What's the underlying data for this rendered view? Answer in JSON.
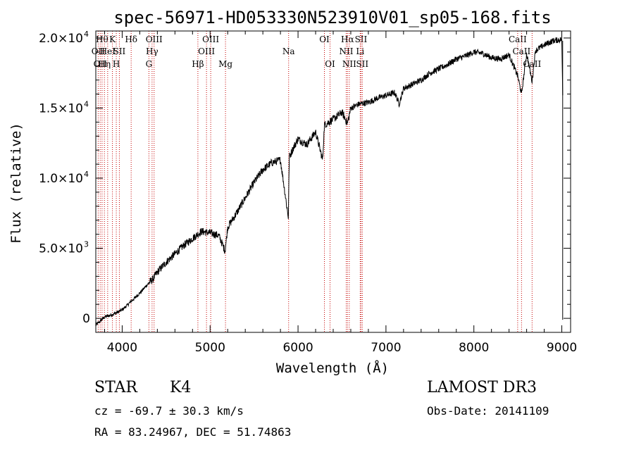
{
  "chart_data": {
    "type": "line",
    "title": "spec-56971-HD053330N523910V01_sp05-168.fits",
    "xlabel": "Wavelength (Å)",
    "ylabel": "Flux (relative)",
    "xlim": [
      3700,
      9100
    ],
    "ylim": [
      -1000,
      20500
    ],
    "x_ticks": [
      4000,
      5000,
      6000,
      7000,
      8000,
      9000
    ],
    "y_ticks": [
      {
        "value": 0,
        "mantissa": "0",
        "exp": ""
      },
      {
        "value": 5000,
        "mantissa": "5.0×10",
        "exp": "3"
      },
      {
        "value": 10000,
        "mantissa": "1.0×10",
        "exp": "4"
      },
      {
        "value": 15000,
        "mantissa": "1.5×10",
        "exp": "4"
      },
      {
        "value": 20000,
        "mantissa": "2.0×10",
        "exp": "4"
      }
    ],
    "series": [
      {
        "name": "spectrum",
        "x": [
          3700,
          3800,
          3900,
          4000,
          4100,
          4200,
          4300,
          4350,
          4400,
          4500,
          4600,
          4700,
          4800,
          4900,
          5000,
          5100,
          5170,
          5200,
          5300,
          5400,
          5500,
          5600,
          5700,
          5800,
          5890,
          5900,
          5950,
          6000,
          6100,
          6200,
          6280,
          6300,
          6400,
          6500,
          6563,
          6600,
          6700,
          6800,
          6900,
          7000,
          7100,
          7150,
          7200,
          7300,
          7400,
          7500,
          7600,
          7700,
          7800,
          7900,
          8000,
          8100,
          8200,
          8300,
          8400,
          8498,
          8542,
          8600,
          8662,
          8700,
          8800,
          8900,
          9000,
          9010
        ],
        "y": [
          -500,
          100,
          300,
          600,
          1200,
          1800,
          2500,
          2800,
          3300,
          4000,
          4600,
          5200,
          5700,
          6200,
          6100,
          5900,
          4800,
          6500,
          7500,
          8600,
          9700,
          10600,
          11100,
          11300,
          7200,
          11500,
          12200,
          12800,
          12400,
          13300,
          11300,
          13800,
          14200,
          14700,
          13900,
          15000,
          15300,
          15400,
          15700,
          15900,
          16100,
          15300,
          16400,
          16700,
          17000,
          17500,
          17800,
          18100,
          18500,
          18700,
          19000,
          18900,
          18600,
          18500,
          18800,
          17300,
          16000,
          18900,
          16900,
          19100,
          19500,
          19800,
          19900,
          16000
        ]
      }
    ],
    "lines": [
      {
        "w": 3727,
        "label": "OII",
        "row": 2
      },
      {
        "w": 3750,
        "label": "OII",
        "row": 3
      },
      {
        "w": 3771,
        "label": "Hθ",
        "row": 1
      },
      {
        "w": 3798,
        "label": "Hη",
        "row": 3
      },
      {
        "w": 3835,
        "label": "HeI",
        "row": 2
      },
      {
        "w": 3889,
        "label": "K",
        "row": 1
      },
      {
        "w": 3933,
        "label": "H",
        "row": 3
      },
      {
        "w": 3968,
        "label": "SII",
        "row": 2
      },
      {
        "w": 4102,
        "label": "Hδ",
        "row": 1
      },
      {
        "w": 4304,
        "label": "G",
        "row": 3
      },
      {
        "w": 4340,
        "label": "Hγ",
        "row": 2
      },
      {
        "w": 4363,
        "label": "OIII",
        "row": 1
      },
      {
        "w": 4861,
        "label": "Hβ",
        "row": 3
      },
      {
        "w": 4959,
        "label": "OIII",
        "row": 2
      },
      {
        "w": 5007,
        "label": "OIII",
        "row": 1
      },
      {
        "w": 5175,
        "label": "Mg",
        "row": 3
      },
      {
        "w": 5893,
        "label": "Na",
        "row": 2
      },
      {
        "w": 6300,
        "label": "OI",
        "row": 1
      },
      {
        "w": 6364,
        "label": "OI",
        "row": 3
      },
      {
        "w": 6548,
        "label": "NII",
        "row": 2
      },
      {
        "w": 6563,
        "label": "Hα",
        "row": 1
      },
      {
        "w": 6583,
        "label": "NII",
        "row": 3
      },
      {
        "w": 6707,
        "label": "Li",
        "row": 2
      },
      {
        "w": 6716,
        "label": "SII",
        "row": 1
      },
      {
        "w": 6731,
        "label": "SII",
        "row": 3
      },
      {
        "w": 8498,
        "label": "CaII",
        "row": 1
      },
      {
        "w": 8542,
        "label": "CaII",
        "row": 2
      },
      {
        "w": 8662,
        "label": "CaII",
        "row": 3
      }
    ]
  },
  "info": {
    "object_class": "STAR",
    "subclass": "K4",
    "survey": "LAMOST DR3",
    "redshift": "cz = -69.7 ± 30.3 km/s",
    "obs_date": "Obs-Date: 20141109",
    "coords": "RA =  83.24967, DEC =  51.74863"
  }
}
